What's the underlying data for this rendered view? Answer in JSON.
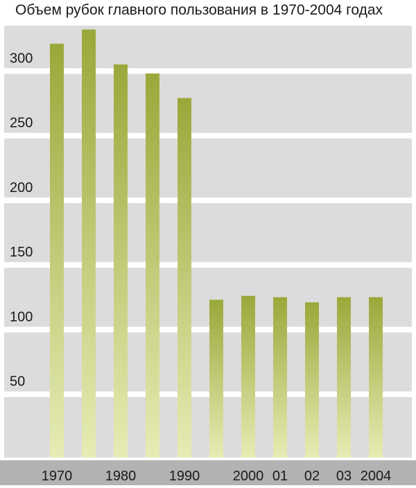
{
  "chart_data": {
    "type": "bar",
    "title": "Объем рубок главного пользования в 1970-2004 годах",
    "xlabel": "",
    "ylabel": "",
    "categories": [
      "1970",
      "",
      "1980",
      "",
      "1990",
      "",
      "2000",
      "01",
      "02",
      "03",
      "2004"
    ],
    "values": [
      320,
      331,
      304,
      297,
      278,
      122,
      125,
      124,
      120,
      124,
      124
    ],
    "ylim": [
      0,
      334
    ],
    "yticks": [
      50,
      100,
      150,
      200,
      250,
      300
    ],
    "grid": true,
    "legend": "none"
  },
  "colors": {
    "band": "#dcdcdc",
    "gridline": "#ffffff",
    "xaxis_strip": "#b2b2b2",
    "bar_top": "#9aa83a",
    "bar_bottom": "#e6ecb4",
    "text": "#1a1a1a"
  }
}
